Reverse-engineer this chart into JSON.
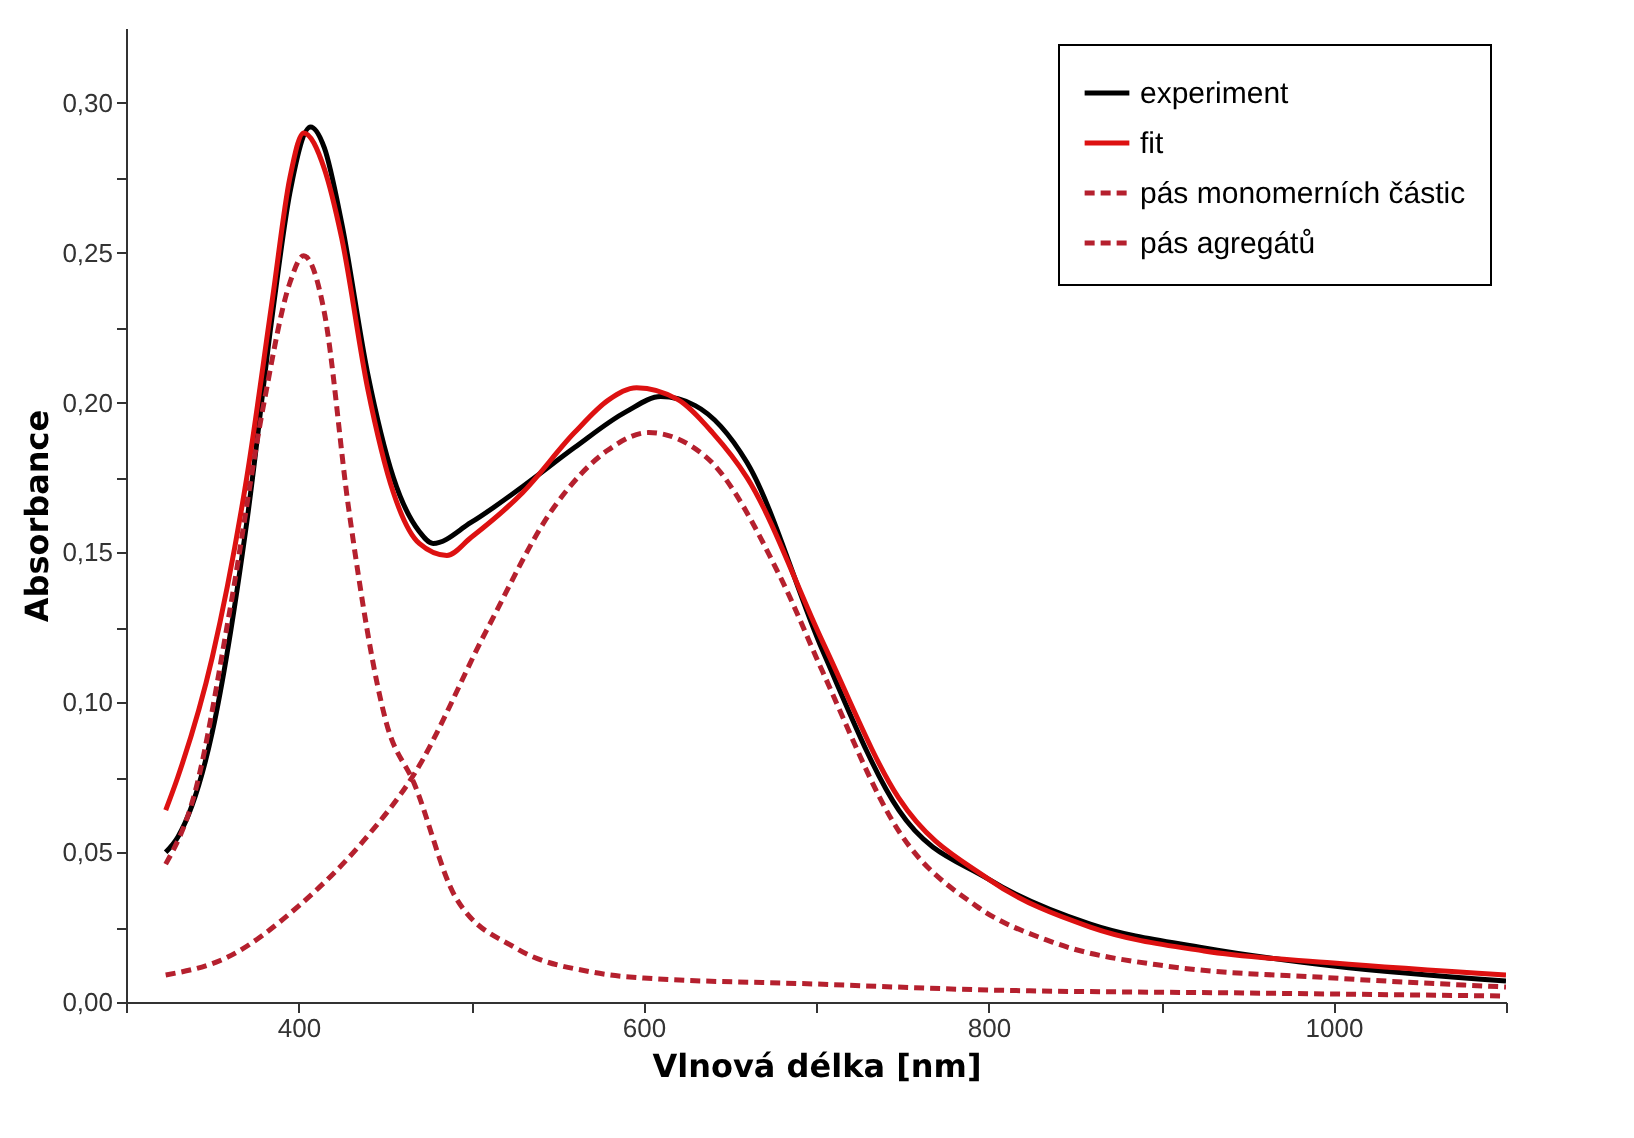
{
  "chart_data": {
    "type": "line",
    "xlabel": "Vlnová délka [nm]",
    "ylabel": "Absorbance",
    "xlim": [
      300,
      1100
    ],
    "ylim": [
      0,
      0.325
    ],
    "xticks": [
      {
        "value": 300,
        "label": null
      },
      400,
      {
        "value": 500,
        "label": null
      },
      600,
      {
        "value": 700,
        "label": null
      },
      800,
      {
        "value": 900,
        "label": null
      },
      1000,
      {
        "value": 1100,
        "label": null
      }
    ],
    "yticks": [
      {
        "value": 0,
        "label": "0,00"
      },
      {
        "value": 0.025,
        "label": null
      },
      {
        "value": 0.05,
        "label": "0,05"
      },
      {
        "value": 0.075,
        "label": null
      },
      {
        "value": 0.1,
        "label": "0,10"
      },
      {
        "value": 0.125,
        "label": null
      },
      {
        "value": 0.15,
        "label": "0,15"
      },
      {
        "value": 0.175,
        "label": null
      },
      {
        "value": 0.2,
        "label": "0,20"
      },
      {
        "value": 0.225,
        "label": null
      },
      {
        "value": 0.25,
        "label": "0,25"
      },
      {
        "value": 0.275,
        "label": null
      },
      {
        "value": 0.3,
        "label": "0,30"
      }
    ],
    "grid": false,
    "legend": "top right",
    "series": [
      {
        "name": "experiment",
        "color": "#000000",
        "line_style": "solid",
        "x": [
          323,
          330,
          350,
          370,
          385,
          395,
          407,
          415,
          425,
          440,
          455,
          470,
          478,
          500,
          530,
          560,
          590,
          610,
          630,
          660,
          704,
          748,
          800,
          859,
          925,
          1000,
          1100
        ],
        "values": [
          0.05,
          0.055,
          0.09,
          0.16,
          0.23,
          0.27,
          0.292,
          0.285,
          0.26,
          0.21,
          0.175,
          0.157,
          0.153,
          0.16,
          0.172,
          0.185,
          0.197,
          0.202,
          0.199,
          0.18,
          0.117,
          0.064,
          0.041,
          0.026,
          0.018,
          0.012,
          0.007
        ]
      },
      {
        "name": "fit",
        "color": "#dd1111",
        "line_style": "solid",
        "x": [
          323,
          330,
          350,
          370,
          385,
          395,
          403,
          415,
          425,
          440,
          455,
          470,
          486,
          500,
          530,
          560,
          580,
          596,
          620,
          640,
          660,
          704,
          748,
          800,
          859,
          925,
          1000,
          1100
        ],
        "values": [
          0.064,
          0.075,
          0.115,
          0.175,
          0.235,
          0.275,
          0.29,
          0.278,
          0.255,
          0.205,
          0.17,
          0.153,
          0.149,
          0.155,
          0.17,
          0.19,
          0.201,
          0.205,
          0.201,
          0.19,
          0.175,
          0.12,
          0.068,
          0.041,
          0.025,
          0.017,
          0.013,
          0.009
        ]
      },
      {
        "name": "pás monomerních částic",
        "color": "#b5202e",
        "line_style": "dashed",
        "x": [
          323,
          340,
          360,
          380,
          395,
          403,
          415,
          429,
          451,
          467,
          491,
          526,
          570,
          600,
          700,
          800,
          950,
          1100
        ],
        "values": [
          0.046,
          0.07,
          0.13,
          0.2,
          0.24,
          0.249,
          0.23,
          0.165,
          0.093,
          0.073,
          0.035,
          0.018,
          0.01,
          0.008,
          0.006,
          0.004,
          0.003,
          0.002
        ]
      },
      {
        "name": "pás agregátů",
        "color": "#b5202e",
        "line_style": "dashed",
        "x": [
          323,
          359,
          400,
          438,
          467,
          509,
          548,
          579,
          603,
          636,
          680,
          704,
          748,
          793,
          837,
          903,
          1000,
          1100
        ],
        "values": [
          0.009,
          0.015,
          0.032,
          0.054,
          0.076,
          0.124,
          0.165,
          0.184,
          0.19,
          0.182,
          0.141,
          0.11,
          0.057,
          0.032,
          0.02,
          0.012,
          0.008,
          0.005
        ]
      }
    ]
  }
}
